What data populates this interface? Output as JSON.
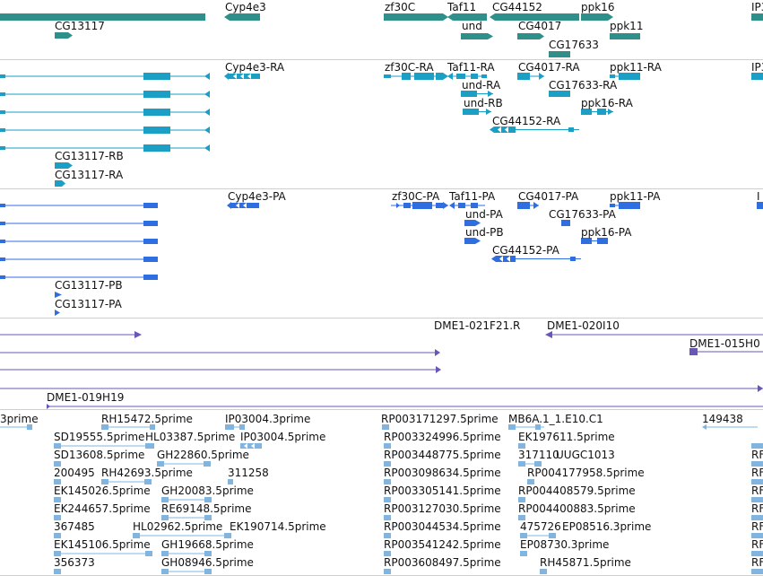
{
  "browser": {
    "tracks": [
      {
        "id": "gene-span",
        "color": "#2f8f8a",
        "labels": [
          "Cyp4e3",
          "zf30C",
          "Taf11",
          "CG44152",
          "ppk16",
          "IP3",
          "CG13117",
          "und",
          "CG4017",
          "ppk11",
          "CG17633"
        ]
      },
      {
        "id": "transcripts",
        "color": "#1b9fc4",
        "labels": [
          "Cyp4e3-RA",
          "zf30C-RA",
          "Taf11-RA",
          "CG4017-RA",
          "ppk11-RA",
          "IP3",
          "und-RA",
          "CG17633-RA",
          "und-RB",
          "ppk16-RA",
          "CG44152-RA",
          "CG13117-RB",
          "CG13117-RA"
        ]
      },
      {
        "id": "proteins",
        "color": "#2f6ee0",
        "labels": [
          "Cyp4e3-PA",
          "zf30C-PA",
          "Taf11-PA",
          "CG4017-PA",
          "ppk11-PA",
          "I",
          "und-PA",
          "CG17633-PA",
          "und-PB",
          "ppk16-PA",
          "CG44152-PA",
          "CG13117-PB",
          "CG13117-PA"
        ]
      },
      {
        "id": "clones",
        "color": "#6a55b8",
        "labels": [
          "DME1-021F21.R",
          "DME1-020I10",
          "DME1-015H0",
          "DME1-019H19"
        ]
      },
      {
        "id": "ests",
        "color": "#82b4e0",
        "labels": [
          "3prime",
          "RH15472.5prime",
          "IP03004.3prime",
          "RP003171297.5prime",
          "MB6A.1_1.E10.C1",
          "149438",
          "SD19555.5prime",
          "HL03387.5prime",
          "IP03004.5prime",
          "RP003324996.5prime",
          "EK197611.5prime",
          "SD13608.5prime",
          "GH22860.5prime",
          "RP003448775.5prime",
          "317110",
          "UUGC1013",
          "200495",
          "RH42693.5prime",
          "311258",
          "RP003098634.5prime",
          "RP004177958.5prime",
          "EK145026.5prime",
          "GH20083.5prime",
          "RP003305141.5prime",
          "RP004408579.5prime",
          "EK244657.5prime",
          "RE69148.5prime",
          "RP003127030.5prime",
          "RP004400883.5prime",
          "367485",
          "HL02962.5prime",
          "EK190714.5prime",
          "RP003044534.5prime",
          "475726",
          "EP08516.3prime",
          "EK145106.5prime",
          "GH19668.5prime",
          "RP003541242.5prime",
          "EP08730.3prime",
          "356373",
          "GH08946.5prime",
          "RP003608497.5prime",
          "RH45871.5prime",
          "RF"
        ]
      }
    ]
  }
}
